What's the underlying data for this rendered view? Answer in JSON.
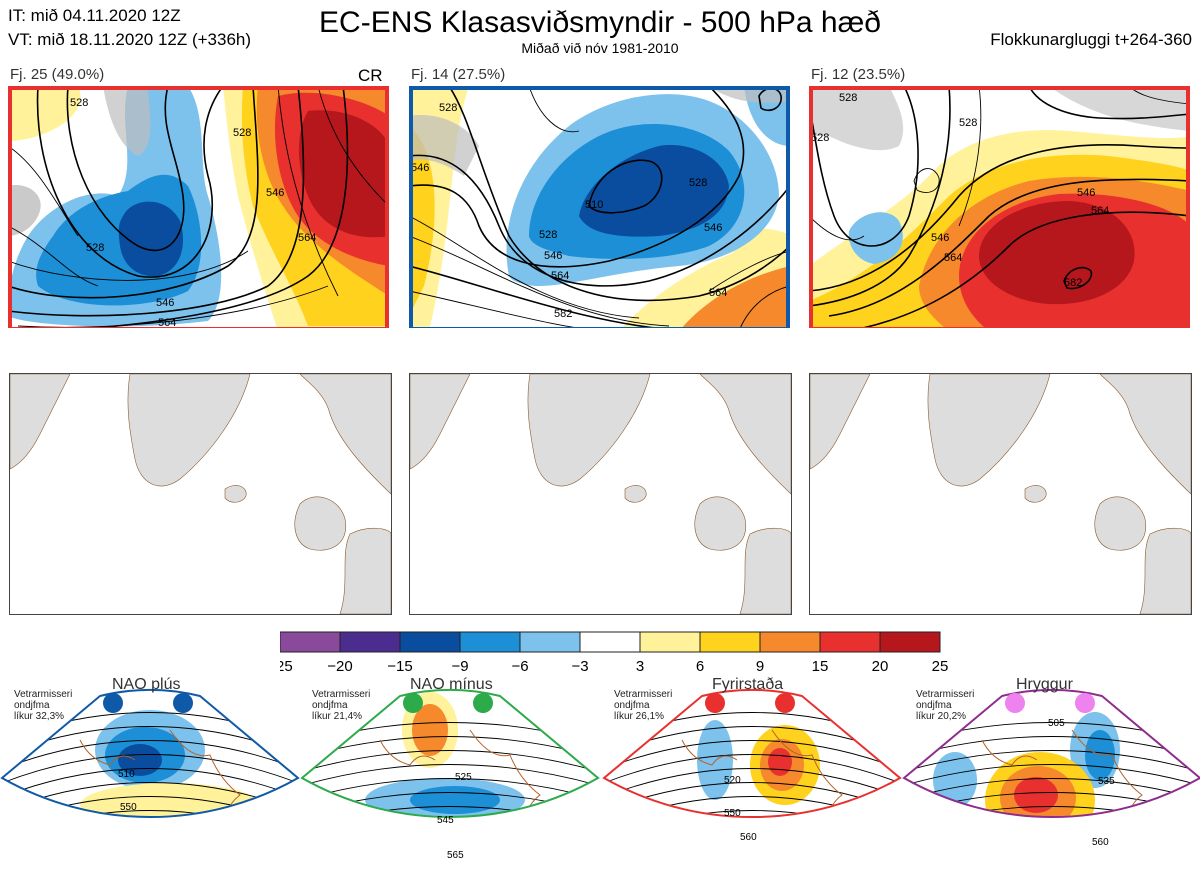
{
  "header": {
    "it_line": "IT: mið 04.11.2020 12Z",
    "vt_line": "VT: mið 18.11.2020 12Z  (+336h)",
    "title": "EC-ENS Klasasviðsmyndir - 500 hPa hæð",
    "subtitle": "Miðað við nóv 1981-2010",
    "window": "Flokkunargluggi t+264-360"
  },
  "clusters": [
    {
      "label": "Fj. 25 (49.0%)",
      "tag": "CR",
      "border_color": "#e8312f",
      "contours": [
        "528",
        "528",
        "546",
        "564",
        "528",
        "546",
        "564"
      ]
    },
    {
      "label": "Fj. 14 (27.5%)",
      "tag": "",
      "border_color": "#0f5aa8",
      "contours": [
        "528",
        "546",
        "510",
        "528",
        "546",
        "528",
        "546",
        "564",
        "582",
        "564"
      ]
    },
    {
      "label": "Fj. 12 (23.5%)",
      "tag": "",
      "border_color": "#e8312f",
      "contours": [
        "528",
        "528",
        "528",
        "546",
        "564",
        "546",
        "564",
        "582"
      ]
    }
  ],
  "colorbar": {
    "ticks": [
      "−25",
      "−20",
      "−15",
      "−9",
      "−6",
      "−3",
      "3",
      "6",
      "9",
      "15",
      "20",
      "25"
    ],
    "colors": [
      "#8a4a9c",
      "#4b2d8f",
      "#0a4d9e",
      "#1c8fd6",
      "#7cc2ec",
      "#ffffff",
      "#fff29a",
      "#ffd21e",
      "#f5892c",
      "#e8312f",
      "#b5171d"
    ]
  },
  "regimes": [
    {
      "name": "NAO plús",
      "note": [
        "Vetrarmisseri",
        "ondjfma",
        "líkur 32,3%"
      ],
      "color": "#0f5aa8",
      "dot_color": "#0f5aa8",
      "labels": [
        "510",
        "550"
      ]
    },
    {
      "name": "NAO mínus",
      "note": [
        "Vetrarmisseri",
        "ondjfma",
        "líkur 21,4%"
      ],
      "color": "#2daa4a",
      "dot_color": "#2daa4a",
      "labels": [
        "525",
        "545",
        "565"
      ]
    },
    {
      "name": "Fyrirstaða",
      "note": [
        "Vetrarmisseri",
        "ondjfma",
        "líkur 26,1%"
      ],
      "color": "#e8312f",
      "dot_color": "#e8312f",
      "labels": [
        "520",
        "550",
        "560"
      ]
    },
    {
      "name": "Hryggur",
      "note": [
        "Vetrarmisseri",
        "ondjfma",
        "líkur 20,2%"
      ],
      "color": "#8e2d8e",
      "dot_color": "#ee82ee",
      "labels": [
        "505",
        "535",
        "560"
      ]
    }
  ]
}
